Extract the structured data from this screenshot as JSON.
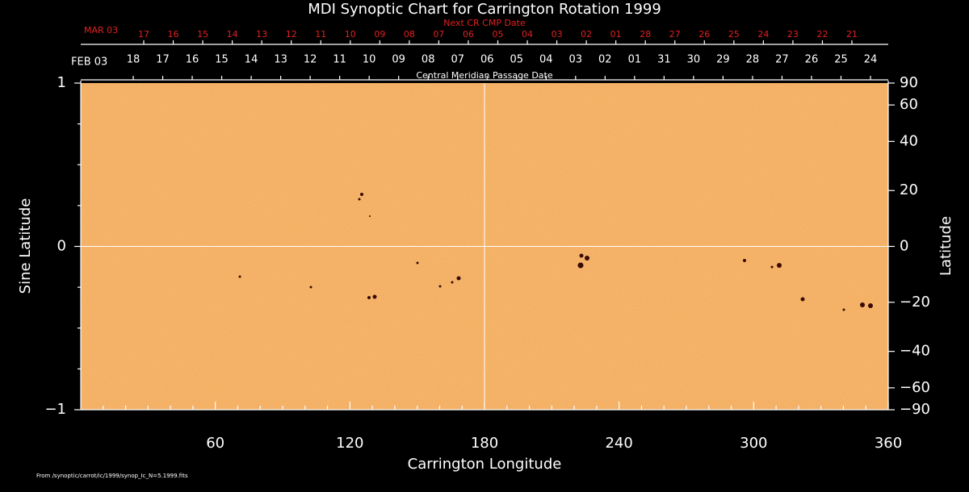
{
  "chart_data": {
    "type": "synoptic-map",
    "title": "MDI Synoptic Chart for Carrington Rotation 1999",
    "xlabel": "Carrington Longitude",
    "ylabel": "Sine Latitude",
    "y2label": "Latitude",
    "top_label": "Central Meridian Passage Date",
    "top2_label": "Next CR CMP Date",
    "top_start": "FEB 03",
    "top_dates": [
      "18",
      "17",
      "16",
      "15",
      "14",
      "13",
      "12",
      "11",
      "10",
      "09",
      "08",
      "07",
      "06",
      "05",
      "04",
      "03",
      "02",
      "01",
      "31",
      "30",
      "29",
      "28",
      "27",
      "26",
      "25",
      "24"
    ],
    "top2_start": "MAR 03",
    "top2_dates": [
      "17",
      "16",
      "15",
      "14",
      "13",
      "12",
      "11",
      "10",
      "09",
      "08",
      "07",
      "06",
      "05",
      "04",
      "03",
      "02",
      "01",
      "28",
      "27",
      "26",
      "25",
      "24",
      "23",
      "22",
      "21"
    ],
    "footer": "From /synoptic/carrot/ic/1999/synop_Ic_N=5.1999.fits",
    "xlim": [
      0,
      360
    ],
    "xticks": [
      60,
      120,
      180,
      240,
      300,
      360
    ],
    "xminor": [
      10,
      20,
      30,
      40,
      50,
      70,
      80,
      90,
      100,
      110,
      130,
      140,
      150,
      160,
      170,
      190,
      200,
      210,
      220,
      230,
      250,
      260,
      270,
      280,
      290,
      310,
      320,
      330,
      340,
      350
    ],
    "ylim": [
      -1,
      1
    ],
    "yticks": [
      {
        "value": -1,
        "label": "−1"
      },
      0,
      1
    ],
    "yminor": [
      -0.75,
      -0.5,
      -0.25,
      0.25,
      0.5,
      0.75
    ],
    "y2scale": "sine",
    "y2ticks": [
      90,
      60,
      40,
      20,
      0,
      {
        "value": -20,
        "label": "−20"
      },
      {
        "value": -40,
        "label": "−40"
      },
      {
        "value": -60,
        "label": "−60"
      },
      {
        "value": -90,
        "label": "−90"
      }
    ],
    "grid": {
      "x": 180,
      "y": 0
    },
    "color": "#f2a552"
  }
}
